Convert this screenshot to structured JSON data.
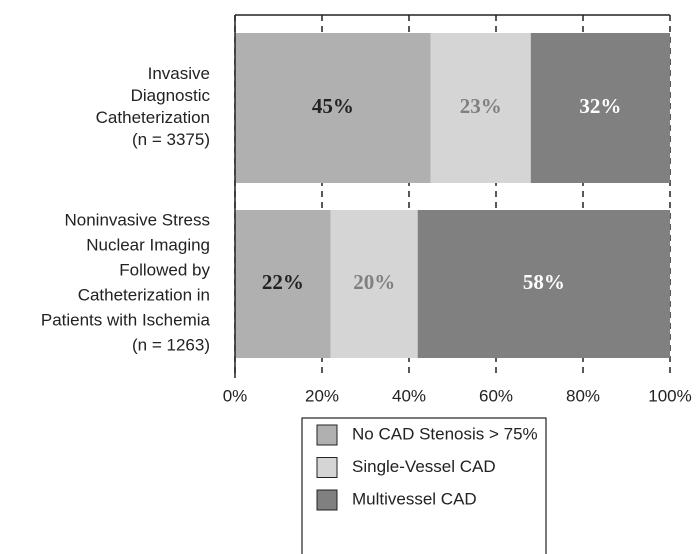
{
  "chart_data": {
    "type": "stacked-bar-horizontal",
    "categories": [
      "Invasive\nDiagnostic\nCatheterization\n(n = 3375)",
      "Noninvasive Stress\nNuclear Imaging\nFollowed by\nCatheterization in\nPatients with Ischemia\n(n = 1263)"
    ],
    "series": [
      {
        "name": "No CAD Stenosis > 75%",
        "color": "#b0b0b0",
        "label_color": "#222222",
        "values": [
          45,
          22
        ],
        "value_labels": [
          "45%",
          "22%"
        ]
      },
      {
        "name": "Single-Vessel CAD",
        "color": "#d5d5d5",
        "label_color": "#808080",
        "values": [
          23,
          20
        ],
        "value_labels": [
          "23%",
          "20%"
        ]
      },
      {
        "name": "Multivessel CAD",
        "color": "#808080",
        "label_color": "#ffffff",
        "values": [
          32,
          58
        ],
        "value_labels": [
          "32%",
          "58%"
        ]
      }
    ],
    "xlim": [
      0,
      100
    ],
    "xticks": [
      {
        "value": 0,
        "label": "0%"
      },
      {
        "value": 20,
        "label": "20%"
      },
      {
        "value": 40,
        "label": "40%"
      },
      {
        "value": 60,
        "label": "60%"
      },
      {
        "value": 80,
        "label": "80%"
      },
      {
        "value": 100,
        "label": "100%"
      }
    ],
    "grid": true
  }
}
